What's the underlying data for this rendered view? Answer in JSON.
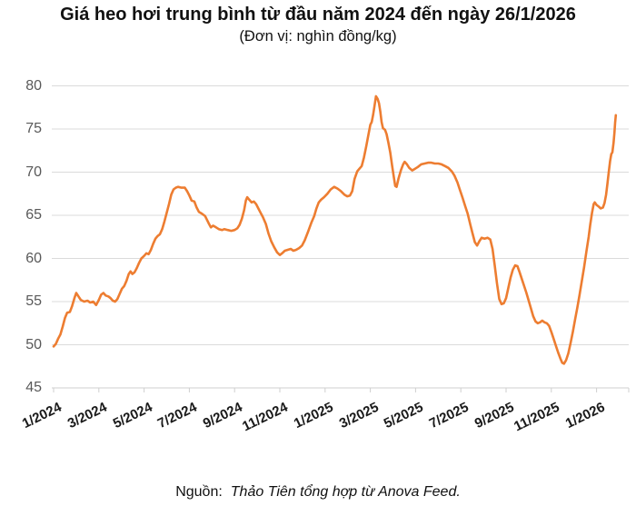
{
  "header": {
    "title": "Giá heo hơi trung bình từ đầu năm 2024 đến ngày 26/1/2026",
    "subtitle": "(Đơn vị: nghìn đồng/kg)"
  },
  "footer": {
    "source_label": "Nguồn:",
    "source_text": "Thảo Tiên tổng hợp từ Anova Feed."
  },
  "chart_data": {
    "type": "line",
    "title": "Giá heo hơi trung bình từ đầu năm 2024 đến ngày 26/1/2026",
    "unit_label": "(Đơn vị: nghìn đồng/kg)",
    "xlabel": "",
    "ylabel": "nghìn đồng/kg",
    "ylim": [
      45,
      80
    ],
    "y_ticks": [
      45,
      50,
      55,
      60,
      65,
      70,
      75,
      80
    ],
    "x_tick_labels": [
      "1/2024",
      "3/2024",
      "5/2024",
      "7/2024",
      "9/2024",
      "11/2024",
      "1/2025",
      "3/2025",
      "5/2025",
      "7/2025",
      "9/2025",
      "11/2025",
      "1/2026"
    ],
    "x_tick_months": [
      0,
      2,
      4,
      6,
      8,
      10,
      12,
      14,
      16,
      18,
      20,
      22,
      24
    ],
    "grid": "horizontal",
    "legend": "none",
    "line_color": "#ED7D31",
    "grid_color": "#DBDBDB",
    "axis_color": "#CFCFCF",
    "x_unit": "months since 1/2024",
    "end_date_label": "26/1/2026",
    "points": [
      [
        0,
        49.8
      ],
      [
        0.1,
        50.1
      ],
      [
        0.2,
        50.7
      ],
      [
        0.3,
        51.2
      ],
      [
        0.4,
        52.1
      ],
      [
        0.5,
        53.1
      ],
      [
        0.6,
        53.7
      ],
      [
        0.72,
        53.8
      ],
      [
        0.82,
        54.5
      ],
      [
        0.92,
        55.4
      ],
      [
        1.0,
        56.0
      ],
      [
        1.1,
        55.6
      ],
      [
        1.2,
        55.2
      ],
      [
        1.35,
        55.0
      ],
      [
        1.5,
        55.1
      ],
      [
        1.62,
        54.9
      ],
      [
        1.75,
        55.0
      ],
      [
        1.88,
        54.6
      ],
      [
        2.0,
        55.2
      ],
      [
        2.1,
        55.8
      ],
      [
        2.2,
        56.0
      ],
      [
        2.3,
        55.7
      ],
      [
        2.42,
        55.6
      ],
      [
        2.52,
        55.4
      ],
      [
        2.62,
        55.1
      ],
      [
        2.72,
        55.0
      ],
      [
        2.82,
        55.3
      ],
      [
        2.92,
        55.9
      ],
      [
        3.02,
        56.5
      ],
      [
        3.12,
        56.8
      ],
      [
        3.22,
        57.4
      ],
      [
        3.32,
        58.2
      ],
      [
        3.4,
        58.5
      ],
      [
        3.48,
        58.2
      ],
      [
        3.58,
        58.4
      ],
      [
        3.68,
        58.9
      ],
      [
        3.78,
        59.5
      ],
      [
        3.88,
        60.0
      ],
      [
        4.0,
        60.3
      ],
      [
        4.1,
        60.6
      ],
      [
        4.2,
        60.5
      ],
      [
        4.3,
        61.0
      ],
      [
        4.4,
        61.7
      ],
      [
        4.5,
        62.3
      ],
      [
        4.6,
        62.6
      ],
      [
        4.7,
        62.8
      ],
      [
        4.8,
        63.4
      ],
      [
        4.9,
        64.3
      ],
      [
        5.0,
        65.3
      ],
      [
        5.1,
        66.3
      ],
      [
        5.2,
        67.4
      ],
      [
        5.3,
        68.0
      ],
      [
        5.4,
        68.2
      ],
      [
        5.5,
        68.3
      ],
      [
        5.65,
        68.2
      ],
      [
        5.8,
        68.2
      ],
      [
        5.9,
        67.8
      ],
      [
        6.0,
        67.3
      ],
      [
        6.1,
        66.7
      ],
      [
        6.22,
        66.6
      ],
      [
        6.32,
        65.9
      ],
      [
        6.42,
        65.4
      ],
      [
        6.55,
        65.2
      ],
      [
        6.7,
        64.9
      ],
      [
        6.85,
        64.1
      ],
      [
        6.95,
        63.6
      ],
      [
        7.05,
        63.8
      ],
      [
        7.18,
        63.6
      ],
      [
        7.3,
        63.4
      ],
      [
        7.45,
        63.3
      ],
      [
        7.55,
        63.4
      ],
      [
        7.7,
        63.3
      ],
      [
        7.85,
        63.2
      ],
      [
        8.0,
        63.3
      ],
      [
        8.12,
        63.5
      ],
      [
        8.22,
        63.9
      ],
      [
        8.32,
        64.6
      ],
      [
        8.42,
        65.6
      ],
      [
        8.5,
        66.7
      ],
      [
        8.56,
        67.1
      ],
      [
        8.65,
        66.8
      ],
      [
        8.75,
        66.5
      ],
      [
        8.85,
        66.6
      ],
      [
        8.95,
        66.3
      ],
      [
        9.05,
        65.8
      ],
      [
        9.15,
        65.3
      ],
      [
        9.25,
        64.8
      ],
      [
        9.38,
        64.0
      ],
      [
        9.5,
        62.9
      ],
      [
        9.62,
        62.0
      ],
      [
        9.75,
        61.3
      ],
      [
        9.88,
        60.7
      ],
      [
        10.0,
        60.4
      ],
      [
        10.1,
        60.6
      ],
      [
        10.22,
        60.9
      ],
      [
        10.35,
        61.0
      ],
      [
        10.48,
        61.1
      ],
      [
        10.6,
        60.9
      ],
      [
        10.72,
        61.0
      ],
      [
        10.85,
        61.2
      ],
      [
        10.98,
        61.5
      ],
      [
        11.1,
        62.1
      ],
      [
        11.25,
        63.1
      ],
      [
        11.4,
        64.2
      ],
      [
        11.52,
        64.9
      ],
      [
        11.62,
        65.8
      ],
      [
        11.72,
        66.5
      ],
      [
        11.82,
        66.8
      ],
      [
        11.95,
        67.1
      ],
      [
        12.1,
        67.5
      ],
      [
        12.25,
        68.0
      ],
      [
        12.4,
        68.3
      ],
      [
        12.55,
        68.1
      ],
      [
        12.7,
        67.8
      ],
      [
        12.85,
        67.4
      ],
      [
        12.98,
        67.2
      ],
      [
        13.1,
        67.3
      ],
      [
        13.2,
        67.8
      ],
      [
        13.3,
        69.2
      ],
      [
        13.42,
        70.1
      ],
      [
        13.52,
        70.4
      ],
      [
        13.62,
        70.7
      ],
      [
        13.72,
        71.7
      ],
      [
        13.82,
        73.0
      ],
      [
        13.92,
        74.4
      ],
      [
        14.0,
        75.5
      ],
      [
        14.06,
        75.8
      ],
      [
        14.12,
        76.6
      ],
      [
        14.18,
        77.6
      ],
      [
        14.25,
        78.8
      ],
      [
        14.32,
        78.5
      ],
      [
        14.38,
        78.0
      ],
      [
        14.44,
        77.0
      ],
      [
        14.5,
        75.8
      ],
      [
        14.56,
        75.1
      ],
      [
        14.65,
        74.9
      ],
      [
        14.72,
        74.4
      ],
      [
        14.8,
        73.4
      ],
      [
        14.88,
        72.3
      ],
      [
        14.96,
        70.8
      ],
      [
        15.04,
        69.4
      ],
      [
        15.1,
        68.4
      ],
      [
        15.16,
        68.3
      ],
      [
        15.25,
        69.3
      ],
      [
        15.35,
        70.2
      ],
      [
        15.45,
        70.9
      ],
      [
        15.52,
        71.2
      ],
      [
        15.62,
        70.9
      ],
      [
        15.72,
        70.5
      ],
      [
        15.85,
        70.2
      ],
      [
        15.98,
        70.4
      ],
      [
        16.1,
        70.6
      ],
      [
        16.25,
        70.9
      ],
      [
        16.4,
        71.0
      ],
      [
        16.55,
        71.1
      ],
      [
        16.7,
        71.1
      ],
      [
        16.85,
        71.0
      ],
      [
        17.0,
        71.0
      ],
      [
        17.15,
        70.9
      ],
      [
        17.3,
        70.7
      ],
      [
        17.45,
        70.5
      ],
      [
        17.6,
        70.1
      ],
      [
        17.72,
        69.6
      ],
      [
        17.85,
        68.8
      ],
      [
        17.95,
        68.0
      ],
      [
        18.08,
        67.0
      ],
      [
        18.2,
        66.0
      ],
      [
        18.3,
        65.2
      ],
      [
        18.42,
        63.9
      ],
      [
        18.52,
        62.9
      ],
      [
        18.62,
        61.9
      ],
      [
        18.72,
        61.5
      ],
      [
        18.82,
        62.0
      ],
      [
        18.92,
        62.4
      ],
      [
        19.05,
        62.3
      ],
      [
        19.18,
        62.4
      ],
      [
        19.3,
        62.2
      ],
      [
        19.4,
        61.1
      ],
      [
        19.5,
        59.2
      ],
      [
        19.6,
        57.1
      ],
      [
        19.7,
        55.3
      ],
      [
        19.8,
        54.7
      ],
      [
        19.9,
        54.8
      ],
      [
        20.0,
        55.4
      ],
      [
        20.1,
        56.6
      ],
      [
        20.2,
        57.8
      ],
      [
        20.3,
        58.7
      ],
      [
        20.4,
        59.2
      ],
      [
        20.5,
        59.1
      ],
      [
        20.6,
        58.4
      ],
      [
        20.7,
        57.6
      ],
      [
        20.8,
        56.8
      ],
      [
        20.9,
        56.0
      ],
      [
        21.0,
        55.1
      ],
      [
        21.1,
        54.2
      ],
      [
        21.2,
        53.3
      ],
      [
        21.3,
        52.7
      ],
      [
        21.4,
        52.5
      ],
      [
        21.5,
        52.6
      ],
      [
        21.6,
        52.8
      ],
      [
        21.7,
        52.6
      ],
      [
        21.8,
        52.5
      ],
      [
        21.9,
        52.2
      ],
      [
        22.0,
        51.5
      ],
      [
        22.1,
        50.7
      ],
      [
        22.2,
        49.9
      ],
      [
        22.3,
        49.1
      ],
      [
        22.4,
        48.4
      ],
      [
        22.48,
        47.9
      ],
      [
        22.56,
        47.8
      ],
      [
        22.65,
        48.2
      ],
      [
        22.75,
        49.0
      ],
      [
        22.85,
        50.2
      ],
      [
        22.95,
        51.5
      ],
      [
        23.05,
        52.9
      ],
      [
        23.15,
        54.3
      ],
      [
        23.25,
        55.8
      ],
      [
        23.35,
        57.4
      ],
      [
        23.45,
        59.0
      ],
      [
        23.55,
        60.8
      ],
      [
        23.65,
        62.5
      ],
      [
        23.72,
        63.9
      ],
      [
        23.8,
        65.3
      ],
      [
        23.87,
        66.3
      ],
      [
        23.92,
        66.5
      ],
      [
        24.0,
        66.2
      ],
      [
        24.1,
        66.0
      ],
      [
        24.18,
        65.8
      ],
      [
        24.28,
        65.9
      ],
      [
        24.35,
        66.4
      ],
      [
        24.42,
        67.4
      ],
      [
        24.48,
        68.7
      ],
      [
        24.54,
        70.0
      ],
      [
        24.6,
        71.3
      ],
      [
        24.65,
        72.1
      ],
      [
        24.7,
        72.3
      ],
      [
        24.75,
        73.4
      ],
      [
        24.79,
        74.6
      ],
      [
        24.82,
        75.7
      ],
      [
        24.85,
        76.6
      ]
    ]
  }
}
